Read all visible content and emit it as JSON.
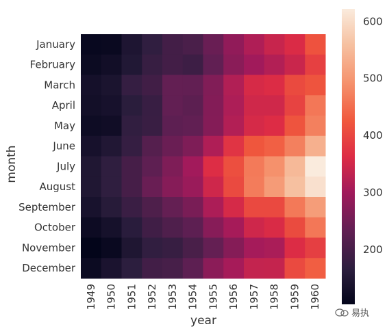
{
  "chart_data": {
    "type": "heatmap",
    "title": "",
    "xlabel": "year",
    "ylabel": "month",
    "x": [
      "1949",
      "1950",
      "1951",
      "1952",
      "1953",
      "1954",
      "1955",
      "1956",
      "1957",
      "1958",
      "1959",
      "1960"
    ],
    "y": [
      "January",
      "February",
      "March",
      "April",
      "May",
      "June",
      "July",
      "August",
      "September",
      "October",
      "November",
      "December"
    ],
    "values": [
      [
        112,
        115,
        145,
        171,
        196,
        204,
        242,
        284,
        315,
        340,
        360,
        417
      ],
      [
        118,
        126,
        150,
        180,
        196,
        188,
        233,
        277,
        301,
        318,
        342,
        391
      ],
      [
        132,
        141,
        178,
        193,
        236,
        235,
        267,
        317,
        356,
        362,
        406,
        419
      ],
      [
        129,
        135,
        163,
        181,
        235,
        227,
        269,
        313,
        348,
        348,
        396,
        461
      ],
      [
        121,
        125,
        172,
        183,
        229,
        234,
        270,
        318,
        355,
        363,
        420,
        472
      ],
      [
        135,
        149,
        178,
        218,
        243,
        264,
        315,
        374,
        422,
        435,
        472,
        535
      ],
      [
        148,
        170,
        199,
        230,
        264,
        302,
        364,
        413,
        465,
        491,
        548,
        622
      ],
      [
        148,
        170,
        199,
        242,
        272,
        293,
        347,
        405,
        467,
        505,
        559,
        606
      ],
      [
        136,
        158,
        184,
        209,
        237,
        259,
        312,
        355,
        404,
        404,
        463,
        508
      ],
      [
        119,
        133,
        162,
        191,
        211,
        229,
        274,
        306,
        347,
        359,
        407,
        461
      ],
      [
        104,
        114,
        146,
        172,
        180,
        203,
        237,
        271,
        305,
        310,
        362,
        390
      ],
      [
        118,
        140,
        166,
        194,
        201,
        229,
        278,
        306,
        336,
        337,
        405,
        432
      ]
    ],
    "colorbar": {
      "min": 104,
      "max": 622,
      "ticks": [
        200,
        300,
        400,
        500,
        600
      ],
      "colormap": "rocket"
    }
  },
  "watermark": {
    "text": "易执"
  },
  "colors": {
    "background": "#ffffff",
    "text": "#333333"
  }
}
